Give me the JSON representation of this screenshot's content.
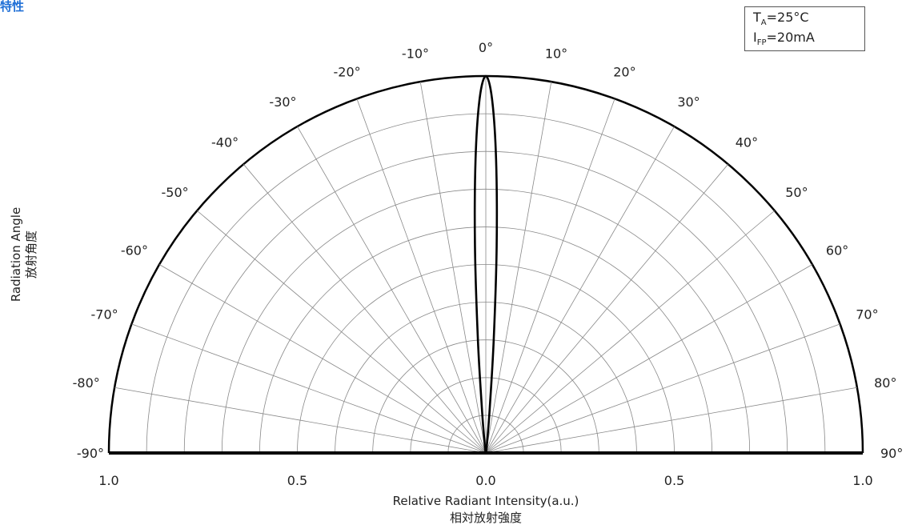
{
  "header": {
    "title_fragment": "特性"
  },
  "chart_data": {
    "type": "polar-line",
    "orientation": "upper-semicircle",
    "angle_ticks": [
      -90,
      -80,
      -70,
      -60,
      -50,
      -40,
      -30,
      -20,
      -10,
      0,
      10,
      20,
      30,
      40,
      50,
      60,
      70,
      80,
      90
    ],
    "angle_labels": [
      "-90°",
      "-80°",
      "-70°",
      "-60°",
      "-50°",
      "-40°",
      "-30°",
      "-20°",
      "-10°",
      "0°",
      "10°",
      "20°",
      "30°",
      "40°",
      "50°",
      "60°",
      "70°",
      "80°",
      "90°"
    ],
    "radial_ticks": [
      1.0,
      0.5,
      0.0,
      0.5,
      1.0
    ],
    "radial_tick_labels": [
      "1.0",
      "0.5",
      "0.0",
      "0.5",
      "1.0"
    ],
    "rlim": [
      0,
      1
    ],
    "grid": true,
    "series": [
      {
        "angles": [
          -90,
          -20,
          -10,
          -6,
          -5,
          -4,
          -3,
          -2,
          -1,
          0,
          1,
          2,
          3,
          4,
          5,
          6,
          10,
          20,
          90
        ],
        "values": [
          0,
          0,
          0.01,
          0.05,
          0.12,
          0.3,
          0.55,
          0.78,
          0.94,
          1.0,
          0.94,
          0.78,
          0.55,
          0.3,
          0.12,
          0.05,
          0.01,
          0,
          0
        ]
      }
    ],
    "ylabel": "Radiation Angle",
    "ylabel_cn": "放射角度",
    "xlabel": "Relative Radiant Intensity(a.u.)",
    "xlabel_cn": "相対放射強度"
  },
  "legend": {
    "line1_main": "T",
    "line1_sub": "A",
    "line1_rest": "=25°C",
    "line2_main": "I",
    "line2_sub": "FP",
    "line2_rest": "=20mA"
  }
}
